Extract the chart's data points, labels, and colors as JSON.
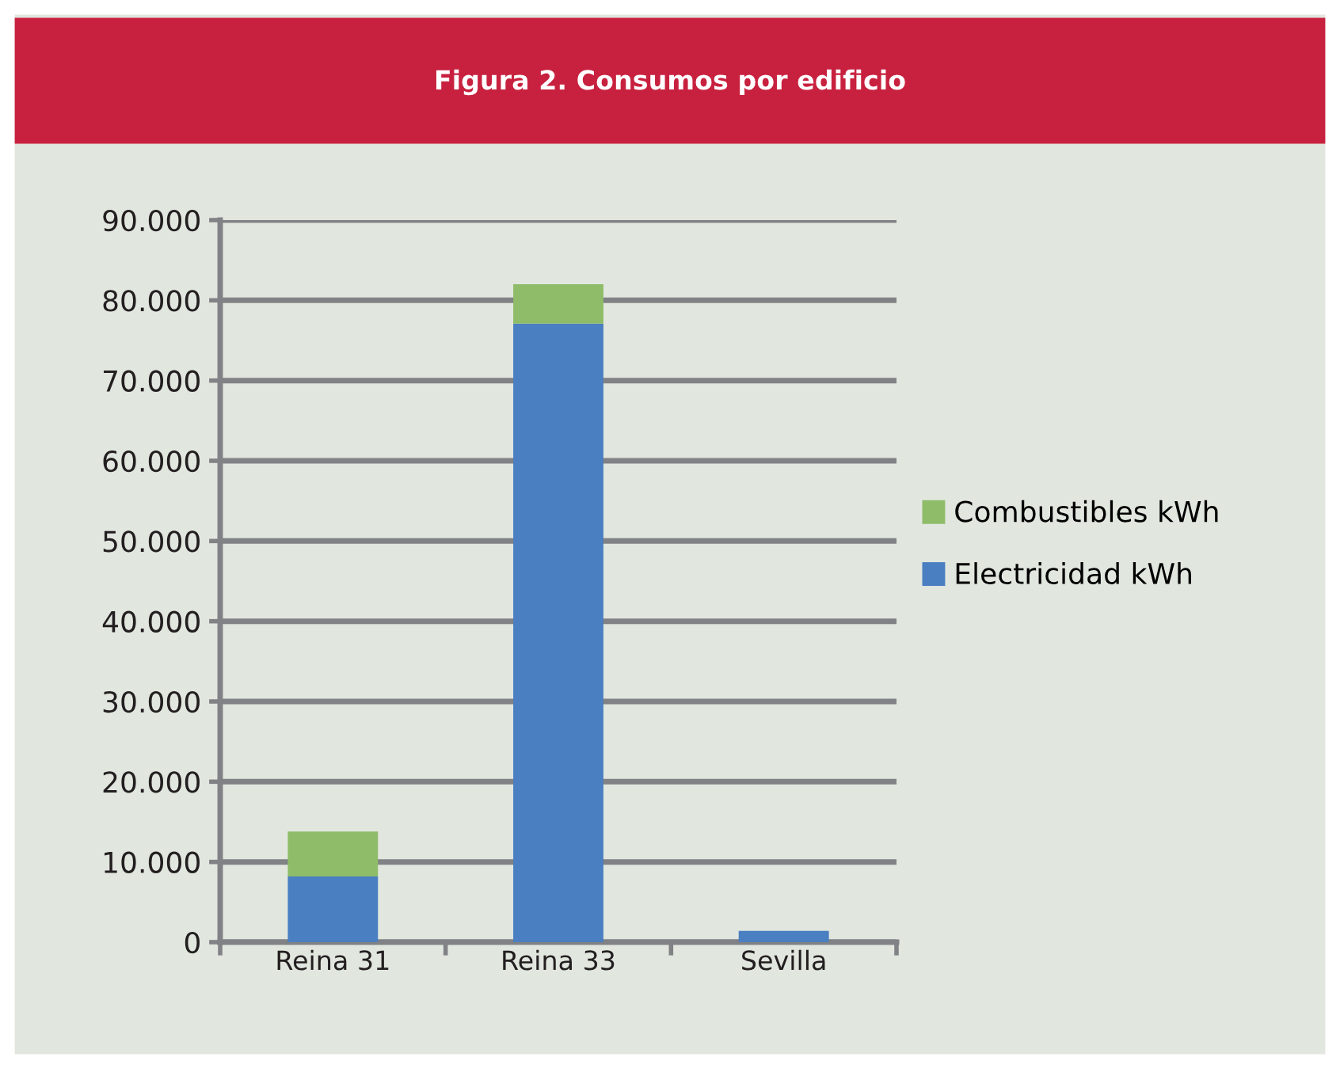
{
  "chart_data": {
    "type": "bar",
    "title": "Figura 2. Consumos por edificio",
    "categories": [
      "Reina 31",
      "Reina 33",
      "Sevilla"
    ],
    "stacked": true,
    "series": [
      {
        "name": "Electricidad kWh",
        "color": "#4a7fc1",
        "values": [
          8200,
          77100,
          1400
        ]
      },
      {
        "name": "Combustibles kWh",
        "color": "#8fbc68",
        "values": [
          5600,
          4900,
          0
        ]
      }
    ],
    "ylim": [
      0,
      90000
    ],
    "yticks": [
      {
        "value": 0,
        "label": "0"
      },
      {
        "value": 10000,
        "label": "10.000"
      },
      {
        "value": 20000,
        "label": "20.000"
      },
      {
        "value": 30000,
        "label": "30.000"
      },
      {
        "value": 40000,
        "label": "40.000"
      },
      {
        "value": 50000,
        "label": "50.000"
      },
      {
        "value": 60000,
        "label": "60.000"
      },
      {
        "value": 70000,
        "label": "70.000"
      },
      {
        "value": 80000,
        "label": "80.000"
      },
      {
        "value": 90000,
        "label": "90.000"
      }
    ],
    "grid": "y",
    "legend": "right"
  }
}
